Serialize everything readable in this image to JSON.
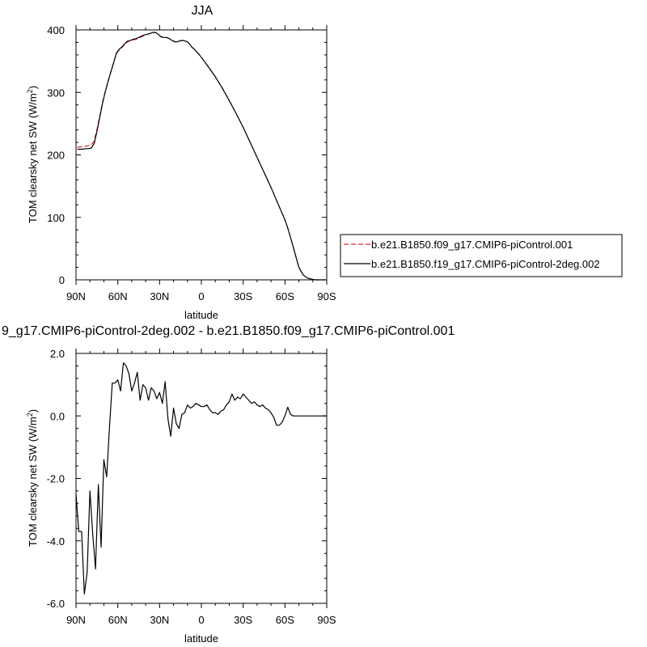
{
  "chart_data": [
    {
      "type": "line",
      "title": "JJA",
      "xlabel": "latitude",
      "ylabel": "TOM clearsky net SW (W/m2)",
      "ylabel_main": "TOM clearsky net SW (W/m",
      "ylabel_sup": "2",
      "ylabel_end": ")",
      "xlim": [
        90,
        -90
      ],
      "ylim": [
        0,
        400
      ],
      "xticks": [
        90,
        60,
        30,
        0,
        -30,
        -60,
        -90
      ],
      "xtick_labels": [
        "90N",
        "60N",
        "30N",
        "0",
        "30S",
        "60S",
        "90S"
      ],
      "yticks": [
        0,
        100,
        200,
        300,
        400
      ],
      "ytick_labels": [
        "0",
        "100",
        "200",
        "300",
        "400"
      ],
      "legend_position": "right",
      "series": [
        {
          "name": "b.e21.B1850.f09_g17.CMIP6-piControl.001",
          "color": "#d62728",
          "dash": "dashed",
          "x": [
            89,
            87,
            85,
            83,
            81,
            79,
            77,
            75,
            73,
            71,
            69,
            67,
            65,
            63,
            61,
            59,
            57,
            55,
            53,
            51,
            49,
            47,
            45,
            43,
            41,
            39,
            37,
            35,
            33,
            31,
            29,
            27,
            25,
            23,
            21,
            19,
            17,
            15,
            13,
            11,
            9,
            7,
            5,
            3,
            1,
            -1,
            -3,
            -5,
            -10,
            -15,
            -20,
            -25,
            -30,
            -35,
            -40,
            -45,
            -50,
            -55,
            -60,
            -62,
            -64,
            -66,
            -68,
            -70,
            -73,
            -76,
            -79,
            -82,
            -85,
            -88,
            -89
          ],
          "y": [
            212,
            213,
            213,
            214,
            215,
            216,
            222,
            240,
            262,
            284,
            302,
            318,
            334,
            348,
            362,
            368,
            372,
            377,
            381,
            383,
            384,
            385,
            387,
            389,
            391,
            393,
            394,
            396,
            396,
            393,
            389,
            388,
            388,
            386,
            383,
            381,
            381,
            383,
            383,
            382,
            379,
            373,
            369,
            364,
            359,
            353,
            347,
            341,
            325,
            307,
            287,
            266,
            244,
            220,
            196,
            172,
            148,
            122,
            96,
            83,
            68,
            52,
            36,
            20,
            8,
            3,
            1,
            0,
            0,
            0,
            0
          ]
        },
        {
          "name": "b.e21.B1850.f19_g17.CMIP6-piControl-2deg.002",
          "color": "#000000",
          "dash": "solid",
          "x": [
            89,
            87,
            85,
            83,
            81,
            79,
            77,
            75,
            73,
            71,
            69,
            67,
            65,
            63,
            61,
            59,
            57,
            55,
            53,
            51,
            49,
            47,
            45,
            43,
            41,
            39,
            37,
            35,
            33,
            31,
            29,
            27,
            25,
            23,
            21,
            19,
            17,
            15,
            13,
            11,
            9,
            7,
            5,
            3,
            1,
            -1,
            -3,
            -5,
            -10,
            -15,
            -20,
            -25,
            -30,
            -35,
            -40,
            -45,
            -50,
            -55,
            -60,
            -62,
            -64,
            -66,
            -68,
            -70,
            -73,
            -76,
            -79,
            -82,
            -85,
            -88,
            -89
          ],
          "y": [
            209,
            209,
            209,
            210,
            210,
            211,
            218,
            237,
            260,
            282,
            301,
            317,
            333,
            347,
            363,
            369,
            373,
            378,
            382,
            383,
            385,
            386,
            388,
            390,
            392,
            393,
            394,
            396,
            396,
            393,
            389,
            388,
            388,
            386,
            383,
            381,
            381,
            383,
            383,
            382,
            379,
            373,
            369,
            364,
            359,
            353,
            347,
            341,
            325,
            307,
            287,
            266,
            244,
            220,
            196,
            172,
            148,
            122,
            96,
            83,
            68,
            52,
            36,
            20,
            8,
            3,
            1,
            0,
            0,
            0,
            0
          ]
        }
      ]
    },
    {
      "type": "line",
      "title": "9_g17.CMIP6-piControl-2deg.002 - b.e21.B1850.f09_g17.CMIP6-piControl.001",
      "xlabel": "latitude",
      "ylabel": "TOM clearsky net SW (W/m2)",
      "ylabel_main": "TOM clearsky net SW (W/m",
      "ylabel_sup": "2",
      "ylabel_end": ")",
      "xlim": [
        90,
        -90
      ],
      "ylim": [
        -6,
        2
      ],
      "xticks": [
        90,
        60,
        30,
        0,
        -30,
        -60,
        -90
      ],
      "xtick_labels": [
        "90N",
        "60N",
        "30N",
        "0",
        "30S",
        "60S",
        "90S"
      ],
      "yticks": [
        -6,
        -4,
        -2,
        0,
        2
      ],
      "ytick_labels": [
        "-6.0",
        "-4.0",
        "-2.0",
        "0.0",
        "2.0"
      ],
      "series": [
        {
          "color": "#000000",
          "dash": "solid",
          "x": [
            90,
            88,
            86,
            84,
            82,
            80,
            78,
            76,
            74,
            72,
            70,
            68,
            66,
            64,
            62,
            60,
            58,
            56,
            54,
            52,
            50,
            48,
            46,
            44,
            42,
            40,
            38,
            36,
            34,
            32,
            30,
            28,
            26,
            24,
            22,
            20,
            18,
            16,
            14,
            12,
            10,
            8,
            6,
            4,
            2,
            0,
            -2,
            -4,
            -6,
            -8,
            -10,
            -12,
            -14,
            -16,
            -18,
            -20,
            -22,
            -24,
            -26,
            -28,
            -30,
            -32,
            -34,
            -36,
            -38,
            -40,
            -42,
            -44,
            -46,
            -48,
            -50,
            -52,
            -54,
            -56,
            -58,
            -60,
            -62,
            -64,
            -66,
            -68,
            -70,
            -75,
            -80,
            -85,
            -90
          ],
          "y": [
            -2.5,
            -3.7,
            -3.7,
            -5.7,
            -5.0,
            -2.4,
            -3.8,
            -4.9,
            -2.2,
            -4.2,
            -1.4,
            -1.95,
            -0.4,
            1.05,
            1.05,
            1.15,
            0.8,
            1.7,
            1.6,
            1.35,
            0.8,
            1.05,
            1.4,
            0.5,
            1.0,
            0.9,
            0.5,
            0.9,
            0.8,
            0.55,
            0.75,
            0.4,
            1.1,
            -0.1,
            -0.65,
            0.25,
            -0.25,
            -0.4,
            0.05,
            0.1,
            0.35,
            0.25,
            0.3,
            0.4,
            0.35,
            0.3,
            0.3,
            0.35,
            0.2,
            0.1,
            0.1,
            0.05,
            0.15,
            0.2,
            0.35,
            0.45,
            0.7,
            0.5,
            0.6,
            0.55,
            0.7,
            0.6,
            0.5,
            0.4,
            0.45,
            0.35,
            0.3,
            0.35,
            0.25,
            0.2,
            0.1,
            -0.05,
            -0.3,
            -0.3,
            -0.2,
            0.0,
            0.28,
            0.05,
            0.0,
            0.0,
            0.0,
            0.0,
            0.0,
            0.0,
            0.0
          ]
        }
      ]
    }
  ]
}
